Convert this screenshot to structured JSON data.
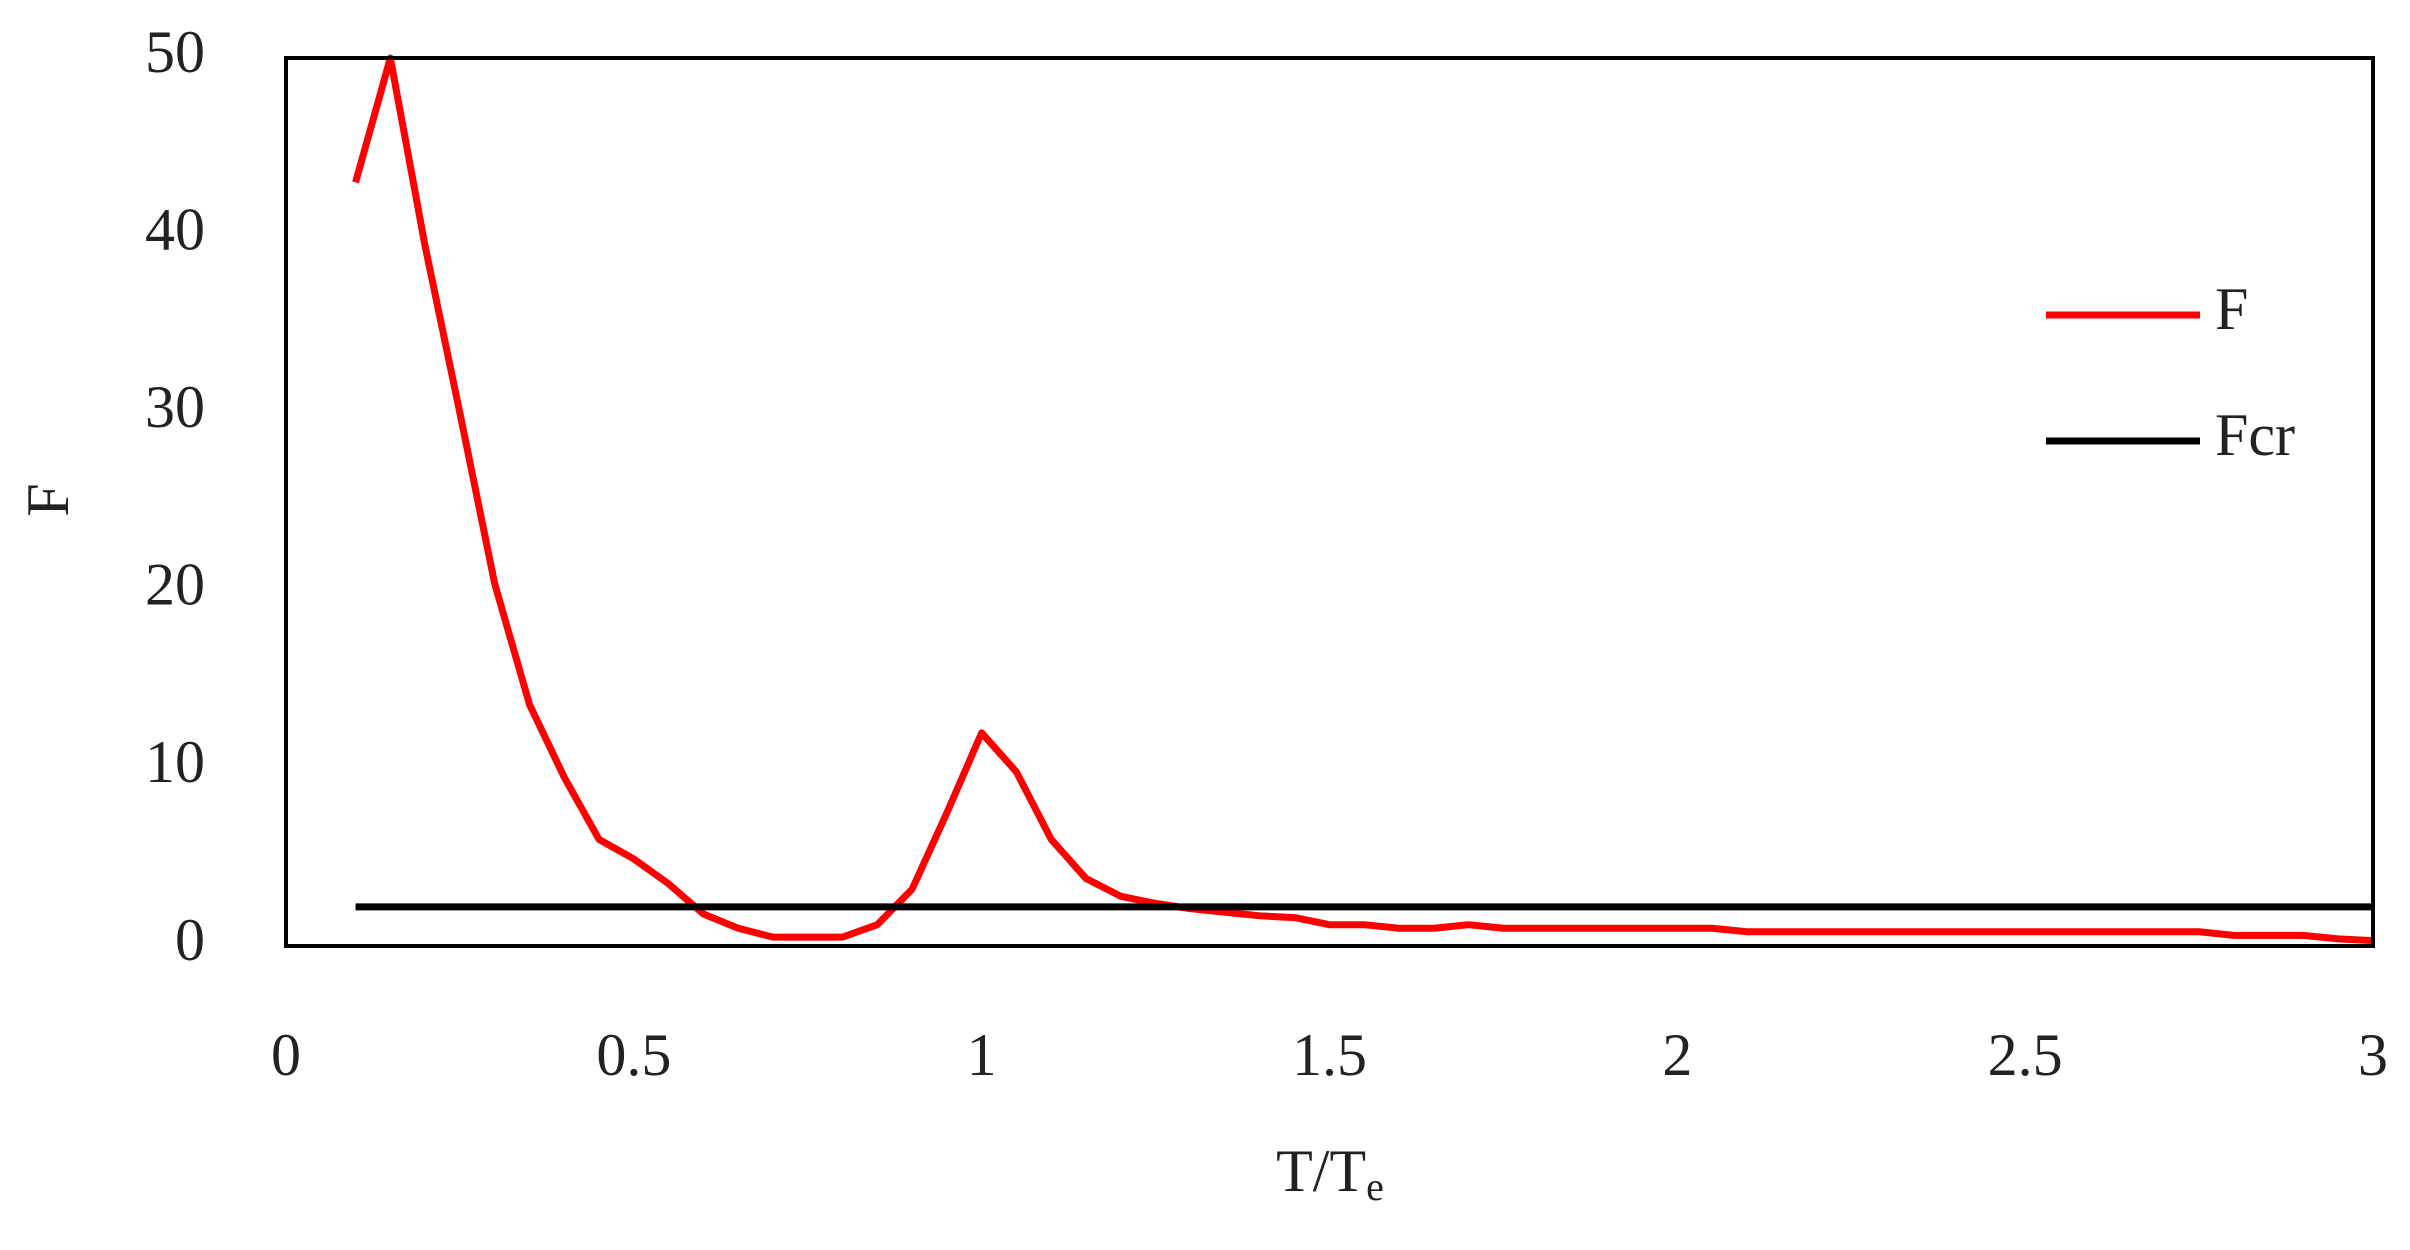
{
  "chart_data": {
    "type": "line",
    "x_label": "T/T",
    "x_label_subscript": "e",
    "y_label": "F",
    "xlim": [
      0,
      3
    ],
    "xticks": [
      0,
      0.5,
      1,
      1.5,
      2,
      2.5,
      3
    ],
    "ylim": [
      0,
      50
    ],
    "yticks": [
      0,
      10,
      20,
      30,
      40,
      50
    ],
    "grid": false,
    "legend": "right",
    "series": [
      {
        "name": "F",
        "color": "#ff0000",
        "x": [
          0.1,
          0.15,
          0.2,
          0.25,
          0.3,
          0.35,
          0.4,
          0.45,
          0.5,
          0.55,
          0.6,
          0.65,
          0.7,
          0.75,
          0.8,
          0.85,
          0.9,
          0.95,
          1,
          1.05,
          1.1,
          1.15,
          1.2,
          1.25,
          1.3,
          1.35,
          1.4,
          1.45,
          1.5,
          1.55,
          1.6,
          1.65,
          1.7,
          1.75,
          1.8,
          1.85,
          1.9,
          1.95,
          2,
          2.05,
          2.1,
          2.15,
          2.2,
          2.25,
          2.3,
          2.35,
          2.4,
          2.45,
          2.5,
          2.55,
          2.6,
          2.65,
          2.7,
          2.75,
          2.8,
          2.85,
          2.9,
          2.95,
          3
        ],
        "values": [
          43,
          50,
          39.4,
          30,
          20.4,
          13.6,
          9.5,
          6,
          4.9,
          3.5,
          1.8,
          1,
          0.5,
          0.5,
          0.5,
          1.2,
          3.2,
          7.5,
          12,
          9.8,
          6,
          3.8,
          2.8,
          2.4,
          2.1,
          1.9,
          1.7,
          1.6,
          1.2,
          1.2,
          1,
          1,
          1.2,
          1,
          1,
          1,
          1,
          1,
          1,
          1,
          0.8,
          0.8,
          0.8,
          0.8,
          0.8,
          0.8,
          0.8,
          0.8,
          0.8,
          0.8,
          0.8,
          0.8,
          0.8,
          0.8,
          0.6,
          0.6,
          0.6,
          0.4,
          0.3
        ]
      },
      {
        "name": "Fcr",
        "color": "#000000",
        "x": [
          0.1,
          3
        ],
        "values": [
          2.2,
          2.2
        ]
      }
    ]
  }
}
